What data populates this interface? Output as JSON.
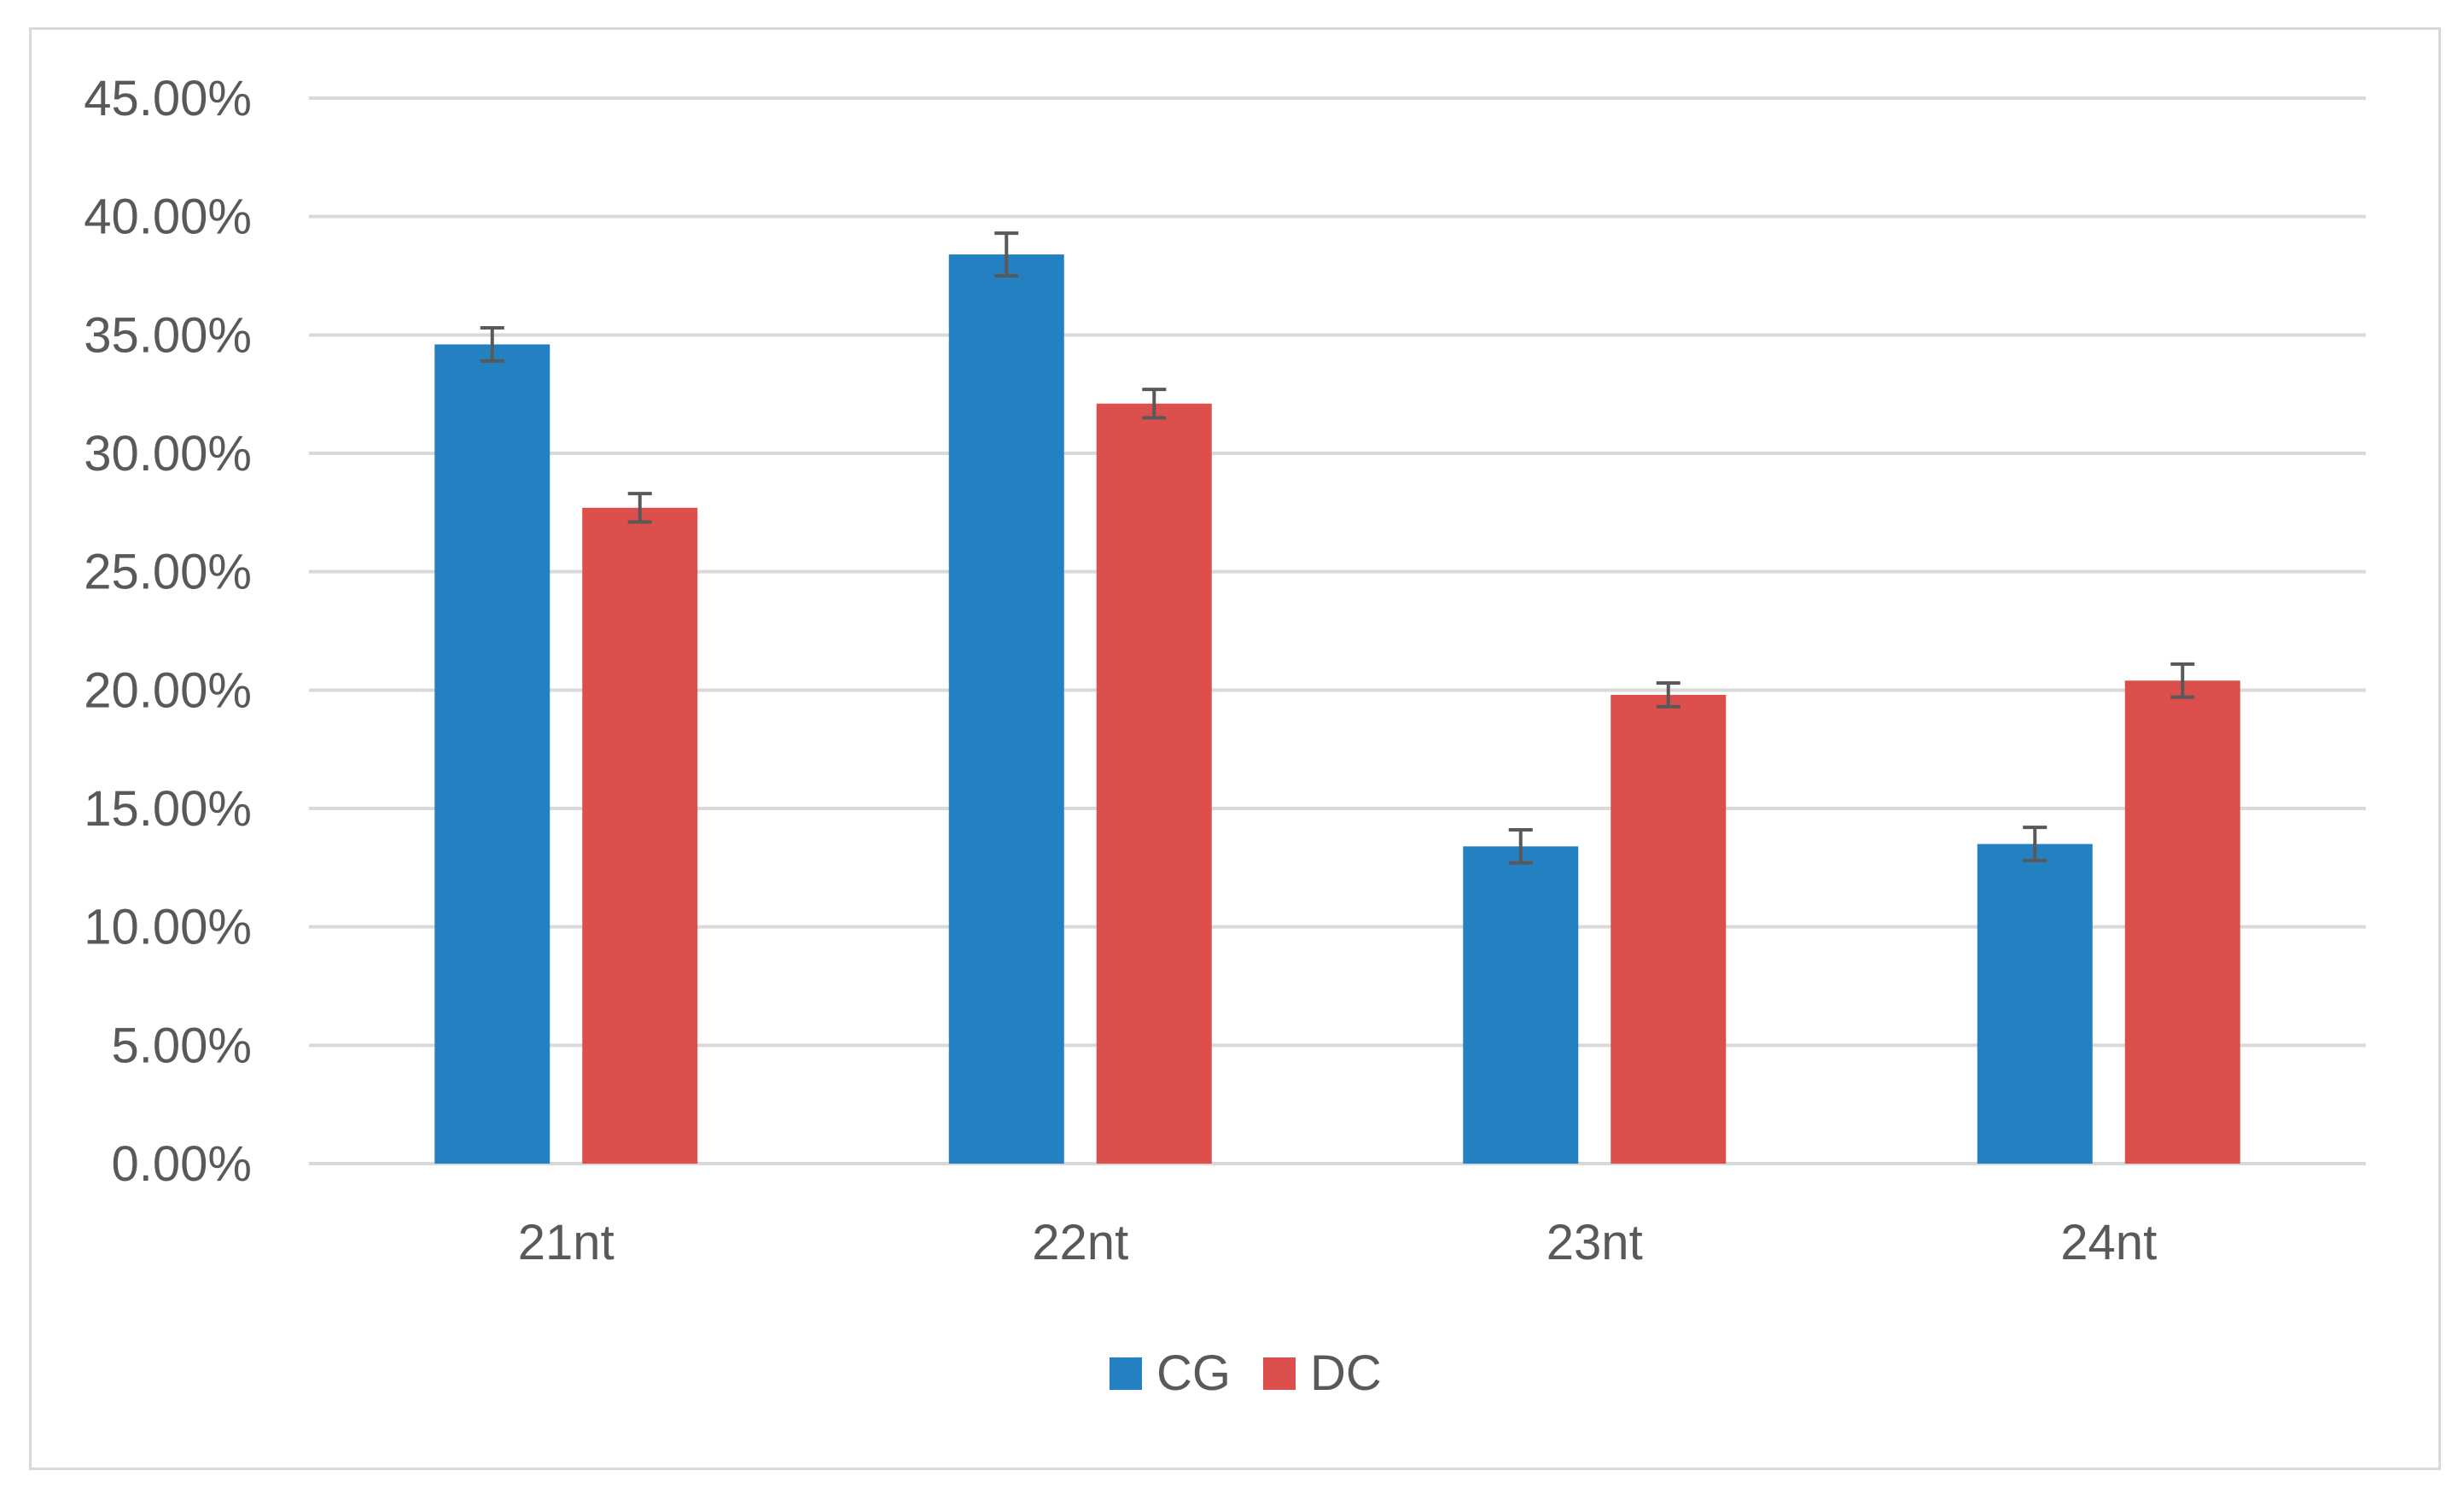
{
  "chart_data": {
    "type": "bar",
    "title": "",
    "xlabel": "",
    "ylabel": "",
    "categories": [
      "21nt",
      "22nt",
      "23nt",
      "24nt"
    ],
    "series": [
      {
        "name": "CG",
        "color": "#2481c1",
        "values": [
          34.6,
          38.4,
          13.4,
          13.5
        ],
        "errors": [
          0.7,
          0.9,
          0.7,
          0.7
        ]
      },
      {
        "name": "DC",
        "color": "#dc4f4c",
        "values": [
          27.7,
          32.1,
          19.8,
          20.4
        ],
        "errors": [
          0.6,
          0.6,
          0.5,
          0.7
        ]
      }
    ],
    "ylim": [
      0,
      45
    ],
    "yticks": [
      "0.00%",
      "5.00%",
      "10.00%",
      "15.00%",
      "20.00%",
      "25.00%",
      "30.00%",
      "35.00%",
      "40.00%",
      "45.00%"
    ],
    "grid": true,
    "legend_position": "bottom",
    "gridline_color": "#d9d9d9",
    "errorbar_color": "#595959"
  }
}
